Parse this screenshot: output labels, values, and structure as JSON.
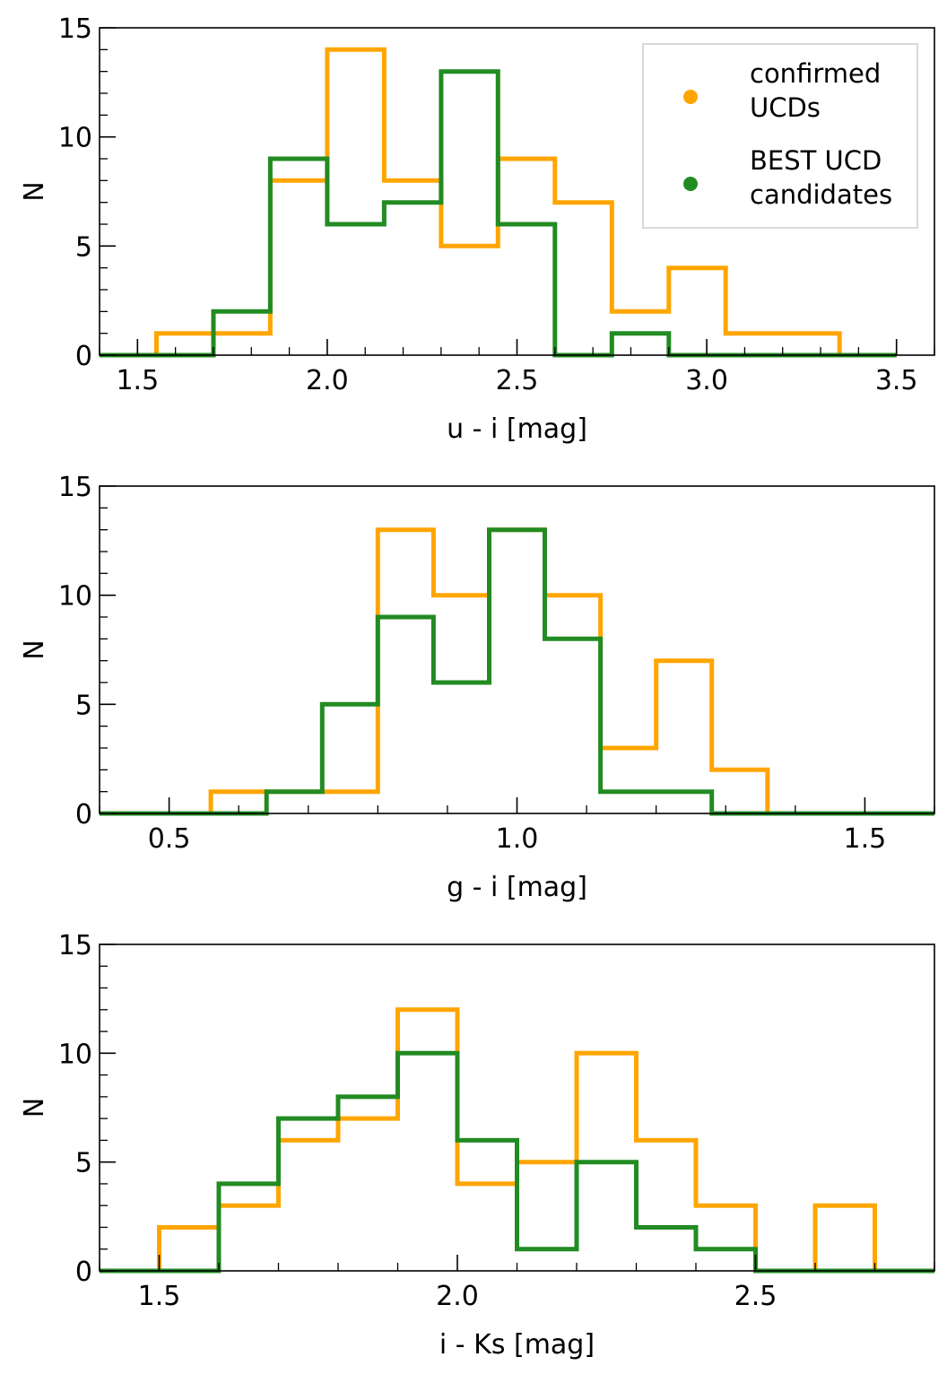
{
  "chart_data": [
    {
      "type": "histogram",
      "title": "",
      "xlabel": "u - i [mag]",
      "ylabel": "N",
      "xlim": [
        1.4,
        3.6
      ],
      "ylim": [
        0,
        15
      ],
      "xticks": [
        "1.5",
        "2.0",
        "2.5",
        "3.0",
        "3.5"
      ],
      "xtick_values": [
        1.5,
        2.0,
        2.5,
        3.0,
        3.5
      ],
      "yticks": [
        "0",
        "5",
        "10",
        "15"
      ],
      "ytick_values": [
        0,
        5,
        10,
        15
      ],
      "series": [
        {
          "name": "confirmed UCDs",
          "color": "#ffa500",
          "edges": [
            1.4,
            1.55,
            1.7,
            1.85,
            2.0,
            2.15,
            2.3,
            2.45,
            2.6,
            2.75,
            2.9,
            3.05,
            3.2,
            3.35,
            3.5
          ],
          "counts": [
            0,
            1,
            1,
            8,
            14,
            8,
            5,
            9,
            7,
            2,
            4,
            1,
            1,
            0
          ]
        },
        {
          "name": "BEST UCD candidates",
          "color": "#228b22",
          "edges": [
            1.4,
            1.55,
            1.7,
            1.85,
            2.0,
            2.15,
            2.3,
            2.45,
            2.6,
            2.75,
            2.9,
            3.05,
            3.2,
            3.35,
            3.5
          ],
          "counts": [
            0,
            0,
            2,
            9,
            6,
            7,
            13,
            6,
            0,
            1,
            0,
            0,
            0,
            0
          ]
        }
      ],
      "legend": {
        "position": "top-right",
        "entries": [
          {
            "lines": [
              "confirmed",
              "UCDs"
            ],
            "color": "#ffa500"
          },
          {
            "lines": [
              "BEST UCD",
              "candidates"
            ],
            "color": "#228b22"
          }
        ]
      }
    },
    {
      "type": "histogram",
      "title": "",
      "xlabel": "g - i [mag]",
      "ylabel": "N",
      "xlim": [
        0.4,
        1.6
      ],
      "ylim": [
        0,
        15
      ],
      "xticks": [
        "0.5",
        "1.0",
        "1.5"
      ],
      "xtick_values": [
        0.5,
        1.0,
        1.5
      ],
      "yticks": [
        "0",
        "5",
        "10",
        "15"
      ],
      "ytick_values": [
        0,
        5,
        10,
        15
      ],
      "series": [
        {
          "name": "confirmed UCDs",
          "color": "#ffa500",
          "edges": [
            0.4,
            0.56,
            0.64,
            0.72,
            0.8,
            0.88,
            0.96,
            1.04,
            1.12,
            1.2,
            1.28,
            1.36,
            1.6
          ],
          "counts": [
            0,
            1,
            1,
            1,
            13,
            10,
            13,
            10,
            3,
            7,
            2,
            0
          ]
        },
        {
          "name": "BEST UCD candidates",
          "color": "#228b22",
          "edges": [
            0.4,
            0.56,
            0.64,
            0.72,
            0.8,
            0.88,
            0.96,
            1.04,
            1.12,
            1.2,
            1.28,
            1.36,
            1.6
          ],
          "counts": [
            0,
            0,
            1,
            5,
            9,
            6,
            13,
            8,
            1,
            1,
            0,
            0
          ]
        }
      ]
    },
    {
      "type": "histogram",
      "title": "",
      "xlabel": "i - Ks [mag]",
      "ylabel": "N",
      "xlim": [
        1.4,
        2.8
      ],
      "ylim": [
        0,
        15
      ],
      "xticks": [
        "1.5",
        "2.0",
        "2.5"
      ],
      "xtick_values": [
        1.5,
        2.0,
        2.5
      ],
      "yticks": [
        "0",
        "5",
        "10",
        "15"
      ],
      "ytick_values": [
        0,
        5,
        10,
        15
      ],
      "series": [
        {
          "name": "confirmed UCDs",
          "color": "#ffa500",
          "edges": [
            1.4,
            1.5,
            1.6,
            1.7,
            1.8,
            1.9,
            2.0,
            2.1,
            2.2,
            2.3,
            2.4,
            2.5,
            2.6,
            2.7,
            2.8
          ],
          "counts": [
            0,
            2,
            3,
            6,
            7,
            12,
            4,
            5,
            10,
            6,
            3,
            0,
            3,
            0
          ]
        },
        {
          "name": "BEST UCD candidates",
          "color": "#228b22",
          "edges": [
            1.4,
            1.5,
            1.6,
            1.7,
            1.8,
            1.9,
            2.0,
            2.1,
            2.2,
            2.3,
            2.4,
            2.5,
            2.6,
            2.7,
            2.8
          ],
          "counts": [
            0,
            0,
            4,
            7,
            8,
            10,
            6,
            1,
            5,
            2,
            1,
            0,
            0,
            0
          ]
        }
      ]
    }
  ]
}
